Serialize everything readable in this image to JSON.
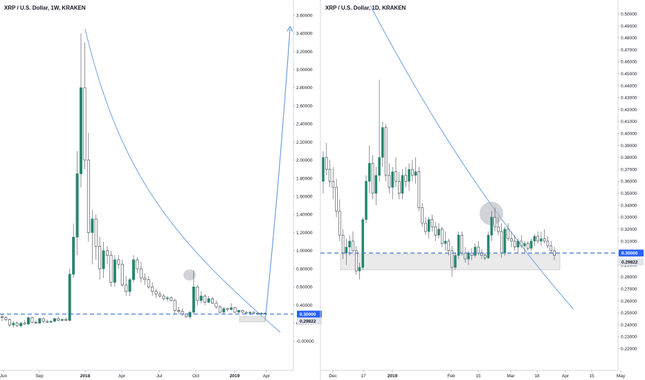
{
  "colors": {
    "bull": "#26866f",
    "bear": "#ffffff",
    "wick": "#5d606b",
    "drawing": "#5b95e0",
    "dash_line": "#3a6fd8",
    "label_blue": "#2962ff",
    "label_grey": "#e0e3eb",
    "axis": "#d1d4dc",
    "highlight": "#b2b5be",
    "zone_fill": "#d8d8d8"
  },
  "chart_data": [
    {
      "type": "candlestick",
      "title": "XRP / U.S. Dollar, 1W, KRAKEN",
      "interval": "1W",
      "ylim": [
        -0.1,
        3.7
      ],
      "yticks": [
        "3.60000",
        "3.40000",
        "3.20000",
        "3.00000",
        "2.80000",
        "2.60000",
        "2.40000",
        "2.20000",
        "2.00000",
        "1.80000",
        "1.60000",
        "1.40000",
        "1.20000",
        "1.00000",
        "0.80000",
        "0.60000",
        "0.40000",
        "0.20000",
        "-0.00000"
      ],
      "xticks": [
        "Jun",
        "Sep",
        "2018",
        "Apr",
        "Jul",
        "Oct",
        "2019",
        "Apr"
      ],
      "bold_xticks": [
        "2018",
        "2019"
      ],
      "price_labels": [
        {
          "value": 0.3,
          "text": "0.30000",
          "style": "blue"
        },
        {
          "value": 0.29822,
          "text": "0.29822",
          "style": "grey"
        }
      ],
      "dashed_level": 0.3,
      "candles": [
        [
          0.27,
          0.3,
          0.22,
          0.26
        ],
        [
          0.26,
          0.28,
          0.22,
          0.24
        ],
        [
          0.24,
          0.25,
          0.16,
          0.18
        ],
        [
          0.18,
          0.22,
          0.15,
          0.2
        ],
        [
          0.2,
          0.22,
          0.16,
          0.17
        ],
        [
          0.17,
          0.21,
          0.15,
          0.2
        ],
        [
          0.2,
          0.23,
          0.18,
          0.19
        ],
        [
          0.19,
          0.27,
          0.18,
          0.26
        ],
        [
          0.26,
          0.27,
          0.2,
          0.21
        ],
        [
          0.21,
          0.23,
          0.19,
          0.2
        ],
        [
          0.2,
          0.26,
          0.19,
          0.25
        ],
        [
          0.25,
          0.26,
          0.2,
          0.22
        ],
        [
          0.22,
          0.24,
          0.2,
          0.21
        ],
        [
          0.21,
          0.23,
          0.2,
          0.22
        ],
        [
          0.22,
          0.26,
          0.21,
          0.25
        ],
        [
          0.25,
          0.27,
          0.22,
          0.23
        ],
        [
          0.23,
          0.25,
          0.22,
          0.24
        ],
        [
          0.24,
          0.26,
          0.22,
          0.23
        ],
        [
          0.23,
          0.8,
          0.22,
          0.74
        ],
        [
          0.74,
          1.3,
          0.7,
          1.15
        ],
        [
          1.15,
          2.1,
          0.95,
          1.85
        ],
        [
          1.85,
          3.4,
          1.7,
          2.8
        ],
        [
          2.8,
          3.3,
          1.9,
          2.0
        ],
        [
          2.0,
          2.3,
          1.1,
          1.2
        ],
        [
          1.2,
          1.45,
          0.85,
          1.35
        ],
        [
          1.35,
          1.4,
          0.9,
          1.05
        ],
        [
          1.05,
          1.15,
          0.68,
          0.8
        ],
        [
          0.8,
          1.1,
          0.7,
          1.0
        ],
        [
          1.0,
          1.05,
          0.85,
          0.95
        ],
        [
          0.95,
          1.0,
          0.6,
          0.65
        ],
        [
          0.65,
          0.95,
          0.6,
          0.9
        ],
        [
          0.9,
          0.95,
          0.8,
          0.85
        ],
        [
          0.85,
          0.9,
          0.6,
          0.62
        ],
        [
          0.62,
          0.72,
          0.5,
          0.55
        ],
        [
          0.55,
          0.7,
          0.5,
          0.68
        ],
        [
          0.68,
          0.95,
          0.65,
          0.9
        ],
        [
          0.9,
          0.93,
          0.75,
          0.8
        ],
        [
          0.8,
          0.88,
          0.65,
          0.7
        ],
        [
          0.7,
          0.75,
          0.62,
          0.68
        ],
        [
          0.68,
          0.72,
          0.58,
          0.6
        ],
        [
          0.6,
          0.65,
          0.5,
          0.55
        ],
        [
          0.55,
          0.58,
          0.48,
          0.52
        ],
        [
          0.52,
          0.55,
          0.48,
          0.5
        ],
        [
          0.5,
          0.52,
          0.45,
          0.47
        ],
        [
          0.47,
          0.5,
          0.44,
          0.48
        ],
        [
          0.48,
          0.5,
          0.44,
          0.45
        ],
        [
          0.45,
          0.47,
          0.3,
          0.34
        ],
        [
          0.34,
          0.38,
          0.3,
          0.33
        ],
        [
          0.33,
          0.36,
          0.28,
          0.3
        ],
        [
          0.3,
          0.31,
          0.26,
          0.27
        ],
        [
          0.27,
          0.33,
          0.25,
          0.32
        ],
        [
          0.32,
          0.78,
          0.3,
          0.6
        ],
        [
          0.6,
          0.62,
          0.4,
          0.45
        ],
        [
          0.45,
          0.55,
          0.42,
          0.5
        ],
        [
          0.5,
          0.52,
          0.4,
          0.43
        ],
        [
          0.43,
          0.5,
          0.42,
          0.47
        ],
        [
          0.47,
          0.49,
          0.41,
          0.42
        ],
        [
          0.42,
          0.45,
          0.36,
          0.38
        ],
        [
          0.38,
          0.4,
          0.3,
          0.32
        ],
        [
          0.32,
          0.38,
          0.3,
          0.36
        ],
        [
          0.36,
          0.37,
          0.33,
          0.35
        ],
        [
          0.35,
          0.42,
          0.34,
          0.37
        ],
        [
          0.37,
          0.38,
          0.31,
          0.32
        ],
        [
          0.32,
          0.35,
          0.31,
          0.34
        ],
        [
          0.34,
          0.35,
          0.31,
          0.32
        ],
        [
          0.32,
          0.33,
          0.3,
          0.31
        ],
        [
          0.31,
          0.33,
          0.29,
          0.32
        ],
        [
          0.32,
          0.33,
          0.3,
          0.31
        ],
        [
          0.31,
          0.32,
          0.29,
          0.3
        ],
        [
          0.3,
          0.32,
          0.29,
          0.31
        ],
        [
          0.31,
          0.32,
          0.3,
          0.3
        ]
      ]
    },
    {
      "type": "candlestick",
      "title": "XRP / U.S. Dollar, 1D, KRAKEN",
      "interval": "1D",
      "ylim": [
        0.21,
        0.503
      ],
      "yticks": [
        "0.50000",
        "0.49000",
        "0.48000",
        "0.47000",
        "0.46000",
        "0.45000",
        "0.44000",
        "0.43000",
        "0.42000",
        "0.41000",
        "0.40000",
        "0.39000",
        "0.38000",
        "0.37000",
        "0.36000",
        "0.35000",
        "0.34000",
        "0.33000",
        "0.32000",
        "0.31000",
        "0.30000",
        "0.29000",
        "0.28000",
        "0.27000",
        "0.26000",
        "0.25000",
        "0.24000",
        "0.23000",
        "0.22000"
      ],
      "xticks": [
        "Dec",
        "17",
        "2019",
        "Feb",
        "15",
        "Mar",
        "18",
        "Apr",
        "15",
        "May"
      ],
      "bold_xticks": [
        "2019"
      ],
      "price_labels": [
        {
          "value": 0.3,
          "text": "0.30000",
          "style": "blue"
        },
        {
          "value": 0.29822,
          "text": "0.29822",
          "style": "grey"
        }
      ],
      "dashed_level": 0.3,
      "support_zone": [
        0.286,
        0.299
      ],
      "candles": [
        [
          0.36,
          0.385,
          0.35,
          0.38
        ],
        [
          0.38,
          0.392,
          0.365,
          0.37
        ],
        [
          0.37,
          0.378,
          0.355,
          0.36
        ],
        [
          0.36,
          0.372,
          0.345,
          0.355
        ],
        [
          0.355,
          0.362,
          0.33,
          0.335
        ],
        [
          0.335,
          0.345,
          0.31,
          0.315
        ],
        [
          0.315,
          0.32,
          0.295,
          0.3
        ],
        [
          0.3,
          0.312,
          0.29,
          0.305
        ],
        [
          0.305,
          0.315,
          0.298,
          0.31
        ],
        [
          0.31,
          0.318,
          0.3,
          0.302
        ],
        [
          0.302,
          0.306,
          0.282,
          0.285
        ],
        [
          0.285,
          0.292,
          0.278,
          0.288
        ],
        [
          0.288,
          0.33,
          0.286,
          0.328
        ],
        [
          0.328,
          0.365,
          0.325,
          0.36
        ],
        [
          0.36,
          0.39,
          0.35,
          0.375
        ],
        [
          0.375,
          0.382,
          0.345,
          0.35
        ],
        [
          0.35,
          0.372,
          0.34,
          0.365
        ],
        [
          0.365,
          0.445,
          0.36,
          0.38
        ],
        [
          0.38,
          0.41,
          0.372,
          0.405
        ],
        [
          0.405,
          0.408,
          0.36,
          0.365
        ],
        [
          0.365,
          0.375,
          0.35,
          0.355
        ],
        [
          0.355,
          0.372,
          0.345,
          0.368
        ],
        [
          0.368,
          0.38,
          0.355,
          0.36
        ],
        [
          0.36,
          0.368,
          0.345,
          0.35
        ],
        [
          0.35,
          0.37,
          0.345,
          0.365
        ],
        [
          0.365,
          0.372,
          0.355,
          0.36
        ],
        [
          0.36,
          0.375,
          0.352,
          0.37
        ],
        [
          0.37,
          0.378,
          0.36,
          0.365
        ],
        [
          0.365,
          0.38,
          0.358,
          0.368
        ],
        [
          0.368,
          0.372,
          0.335,
          0.338
        ],
        [
          0.338,
          0.342,
          0.322,
          0.325
        ],
        [
          0.325,
          0.33,
          0.315,
          0.318
        ],
        [
          0.318,
          0.33,
          0.312,
          0.328
        ],
        [
          0.328,
          0.332,
          0.318,
          0.322
        ],
        [
          0.322,
          0.326,
          0.31,
          0.315
        ],
        [
          0.315,
          0.325,
          0.312,
          0.32
        ],
        [
          0.32,
          0.322,
          0.305,
          0.308
        ],
        [
          0.308,
          0.318,
          0.302,
          0.31
        ],
        [
          0.31,
          0.312,
          0.298,
          0.302
        ],
        [
          0.302,
          0.306,
          0.28,
          0.288
        ],
        [
          0.288,
          0.3,
          0.286,
          0.298
        ],
        [
          0.298,
          0.318,
          0.295,
          0.315
        ],
        [
          0.315,
          0.318,
          0.298,
          0.3
        ],
        [
          0.3,
          0.305,
          0.292,
          0.295
        ],
        [
          0.295,
          0.302,
          0.29,
          0.3
        ],
        [
          0.3,
          0.304,
          0.294,
          0.298
        ],
        [
          0.298,
          0.308,
          0.296,
          0.305
        ],
        [
          0.305,
          0.31,
          0.298,
          0.3
        ],
        [
          0.3,
          0.303,
          0.295,
          0.298
        ],
        [
          0.298,
          0.3,
          0.294,
          0.296
        ],
        [
          0.296,
          0.318,
          0.295,
          0.315
        ],
        [
          0.315,
          0.335,
          0.31,
          0.33
        ],
        [
          0.33,
          0.338,
          0.318,
          0.322
        ],
        [
          0.322,
          0.33,
          0.315,
          0.318
        ],
        [
          0.318,
          0.325,
          0.296,
          0.3
        ],
        [
          0.3,
          0.322,
          0.298,
          0.32
        ],
        [
          0.32,
          0.325,
          0.31,
          0.312
        ],
        [
          0.312,
          0.318,
          0.305,
          0.31
        ],
        [
          0.31,
          0.315,
          0.302,
          0.305
        ],
        [
          0.305,
          0.312,
          0.3,
          0.31
        ],
        [
          0.31,
          0.315,
          0.304,
          0.306
        ],
        [
          0.306,
          0.31,
          0.3,
          0.308
        ],
        [
          0.308,
          0.31,
          0.302,
          0.304
        ],
        [
          0.304,
          0.312,
          0.302,
          0.31
        ],
        [
          0.31,
          0.316,
          0.306,
          0.314
        ],
        [
          0.314,
          0.318,
          0.308,
          0.31
        ],
        [
          0.31,
          0.318,
          0.306,
          0.312
        ],
        [
          0.312,
          0.32,
          0.308,
          0.31
        ],
        [
          0.31,
          0.314,
          0.304,
          0.306
        ],
        [
          0.306,
          0.31,
          0.3,
          0.302
        ],
        [
          0.302,
          0.305,
          0.294,
          0.298
        ]
      ]
    }
  ]
}
